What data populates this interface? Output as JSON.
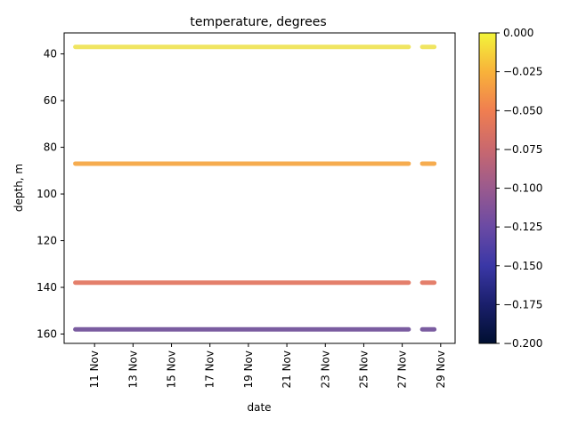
{
  "chart_data": {
    "type": "scatter",
    "title": "temperature, degrees",
    "xlabel": "date",
    "ylabel": "depth, m",
    "x_ticks": [
      "11 Nov",
      "13 Nov",
      "15 Nov",
      "17 Nov",
      "19 Nov",
      "21 Nov",
      "23 Nov",
      "25 Nov",
      "27 Nov",
      "29 Nov"
    ],
    "x_tick_dates": [
      "2021-11-11",
      "2021-11-13",
      "2021-11-15",
      "2021-11-17",
      "2021-11-19",
      "2021-11-21",
      "2021-11-23",
      "2021-11-25",
      "2021-11-27",
      "2021-11-29"
    ],
    "xlim": [
      "2021-11-09T10:00",
      "2021-11-29T18:00"
    ],
    "y_ticks": [
      40,
      60,
      80,
      100,
      120,
      140,
      160
    ],
    "ylim": [
      164,
      31
    ],
    "y_inverted": true,
    "grid": false,
    "colorbar": {
      "range": [
        -0.2,
        0
      ],
      "ticks": [
        0.0,
        -0.025,
        -0.05,
        -0.075,
        -0.1,
        -0.125,
        -0.15,
        -0.175,
        -0.2
      ],
      "tick_labels": [
        "0.000",
        "−0.025",
        "−0.050",
        "−0.075",
        "−0.100",
        "−0.125",
        "−0.150",
        "−0.175",
        "−0.200"
      ],
      "colormap": "plasma"
    },
    "series": [
      {
        "depth": 37,
        "temperature": -0.01,
        "segments": [
          [
            "2021-11-10T00:00",
            "2021-11-27T08:00"
          ],
          [
            "2021-11-28T01:00",
            "2021-11-28T16:00"
          ]
        ],
        "color": "#efe350"
      },
      {
        "depth": 87,
        "temperature": -0.045,
        "segments": [
          [
            "2021-11-10T00:00",
            "2021-11-27T08:00"
          ],
          [
            "2021-11-28T01:00",
            "2021-11-28T16:00"
          ]
        ],
        "color": "#f6a43d"
      },
      {
        "depth": 138,
        "temperature": -0.085,
        "segments": [
          [
            "2021-11-10T00:00",
            "2021-11-27T08:00"
          ],
          [
            "2021-11-28T01:00",
            "2021-11-28T16:00"
          ]
        ],
        "color": "#e2725b"
      },
      {
        "depth": 158,
        "temperature": -0.13,
        "segments": [
          [
            "2021-11-10T00:00",
            "2021-11-27T08:00"
          ],
          [
            "2021-11-28T01:00",
            "2021-11-28T16:00"
          ]
        ],
        "color": "#6c4b96"
      }
    ]
  }
}
